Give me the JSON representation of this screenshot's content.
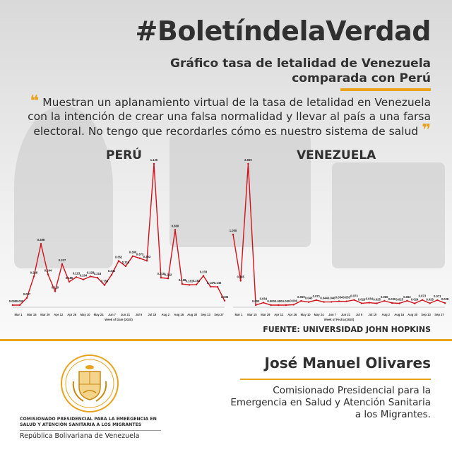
{
  "header": {
    "hashtag": "#BoletíndelaVerdad",
    "subtitle": "Gráfico tasa de letalidad de Venezuela comparada con Perú"
  },
  "quote": {
    "text": "Muestran un aplanamiento virtual de la tasa de letalidad en Venezuela con la intención de crear una falsa normalidad y llevar al país a una farsa electoral. No tengo que recordarles cómo es nuestro sistema de salud",
    "open_mark": "❝",
    "close_mark": "❞"
  },
  "source": "FUENTE: UNIVERSIDAD JOHN HOPKINS",
  "footer": {
    "institution": "COMISIONADO PRESIDENCIAL PARA LA EMERGENCIA EN SALUD Y ATENCIÓN SANITARIA A LOS MIGRANTES",
    "republic": "República Bolivariana de Venezuela",
    "name": "José Manuel Olivares",
    "role": "Comisionado Presidencial para la Emergencia en Salud y Atención Sanitaria a los Migrantes."
  },
  "colors": {
    "accent": "#e8a21c",
    "line": "#d0121b",
    "text": "#2b2b2b"
  },
  "chart_data": [
    {
      "type": "line",
      "title": "PERÚ",
      "xlabel": "Week of Date (2020)",
      "ylabel": "",
      "x_ticks": [
        "Mar 1",
        "Mar 15",
        "Mar 29",
        "Apr 12",
        "Apr 26",
        "May 10",
        "May 24",
        "Jun 7",
        "Jun 21",
        "Jul 5",
        "Jul 19",
        "Aug 2",
        "Aug 16",
        "Aug 30",
        "Sep 13",
        "Sep 27"
      ],
      "ylim": [
        0,
        1.125
      ],
      "series": [
        {
          "values": [
            0.0,
            0.0,
            0.057,
            0.228,
            0.488,
            0.244,
            0.11,
            0.327,
            0.186,
            0.223,
            0.204,
            0.228,
            0.218,
            0.159,
            0.241,
            0.352,
            0.31,
            0.39,
            0.373,
            0.353,
            1.125,
            0.218,
            0.212,
            0.6,
            0.168,
            0.161,
            0.163,
            0.233,
            0.147,
            0.145,
            0.035
          ],
          "labels": [
            "0.000",
            "0.000",
            "0.057",
            "0.228",
            "0.488",
            "0.244",
            "0.110",
            "0.327",
            "0.186",
            "0.223",
            "0.204",
            "0.228",
            "0.218",
            "0.159",
            "0.241",
            "0.352",
            "0.310",
            "0.390",
            "0.373",
            "0.353",
            "1.125",
            "0.218",
            "0.212",
            "0.600",
            "0.168",
            "0.161",
            "0.163",
            "0.233",
            "0.147",
            "0.145",
            "0.035"
          ]
        }
      ]
    },
    {
      "type": "line",
      "title": "VENEZUELA",
      "xlabel": "Week of Fecha (2020)",
      "ylabel": "",
      "x_ticks": [
        "Mar 1",
        "Mar 15",
        "Mar 29",
        "Apr 12",
        "Apr 26",
        "May 10",
        "May 24",
        "Jun 7",
        "Jun 21",
        "Jul 5",
        "Jul 19",
        "Aug 2",
        "Aug 16",
        "Aug 30",
        "Sep 13",
        "Sep 27"
      ],
      "ylim": [
        0,
        2.0
      ],
      "series": [
        {
          "values": [
            1.0,
            0.345,
            2.0,
            0.0,
            0.034,
            0.0,
            0.0,
            0.0,
            0.006,
            0.059,
            0.043,
            0.071,
            0.044,
            0.046,
            0.054,
            0.053,
            0.073,
            0.026,
            0.034,
            0.025,
            0.06,
            0.03,
            0.025,
            0.062,
            0.024,
            0.073,
            0.026,
            0.071,
            0.028
          ],
          "labels": [
            "1.000",
            "0.345",
            "2.000",
            "0.000",
            "0.034",
            "0.000",
            "0.000",
            "0.000",
            "0.006",
            "0.059",
            "0.043",
            "0.071",
            "0.044",
            "0.046",
            "0.054",
            "0.053",
            "0.073",
            "0.026",
            "0.034",
            "0.025",
            "0.060",
            "0.030",
            "0.025",
            "0.062",
            "0.024",
            "0.073",
            "0.026",
            "0.071",
            "0.028"
          ]
        }
      ]
    }
  ]
}
